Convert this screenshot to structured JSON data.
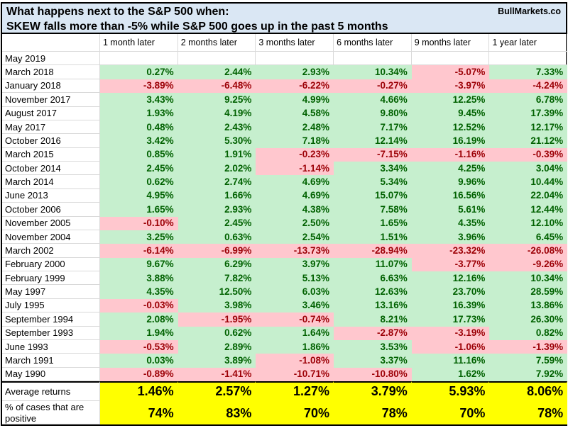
{
  "header": {
    "title_line1": "What happens next to the S&P 500 when:",
    "title_line2": "SKEW falls more than -5% while S&P 500 goes up in the past 5 months",
    "brand": "BullMarkets.co"
  },
  "chart_data": {
    "type": "table",
    "title": "What happens next to the S&P 500 when: SKEW falls more than -5% while S&P 500 goes up in the past 5 months",
    "columns": [
      "",
      "1 month later",
      "2 months later",
      "3 months later",
      "6 months later",
      "9 months later",
      "1 year later"
    ],
    "rows": [
      {
        "label": "May 2019",
        "values": [
          "",
          "",
          "",
          "",
          "",
          ""
        ]
      },
      {
        "label": "March 2018",
        "values": [
          "0.27%",
          "2.44%",
          "2.93%",
          "10.34%",
          "-5.07%",
          "7.33%"
        ]
      },
      {
        "label": "January 2018",
        "values": [
          "-3.89%",
          "-6.48%",
          "-6.22%",
          "-0.27%",
          "-3.97%",
          "-4.24%"
        ]
      },
      {
        "label": "November 2017",
        "values": [
          "3.43%",
          "9.25%",
          "4.99%",
          "4.66%",
          "12.25%",
          "6.78%"
        ]
      },
      {
        "label": "August 2017",
        "values": [
          "1.93%",
          "4.19%",
          "4.58%",
          "9.80%",
          "9.45%",
          "17.39%"
        ]
      },
      {
        "label": "May 2017",
        "values": [
          "0.48%",
          "2.43%",
          "2.48%",
          "7.17%",
          "12.52%",
          "12.17%"
        ]
      },
      {
        "label": "October 2016",
        "values": [
          "3.42%",
          "5.30%",
          "7.18%",
          "12.14%",
          "16.19%",
          "21.12%"
        ]
      },
      {
        "label": "March 2015",
        "values": [
          "0.85%",
          "1.91%",
          "-0.23%",
          "-7.15%",
          "-1.16%",
          "-0.39%"
        ]
      },
      {
        "label": "October 2014",
        "values": [
          "2.45%",
          "2.02%",
          "-1.14%",
          "3.34%",
          "4.25%",
          "3.04%"
        ]
      },
      {
        "label": "March 2014",
        "values": [
          "0.62%",
          "2.74%",
          "4.69%",
          "5.34%",
          "9.96%",
          "10.44%"
        ]
      },
      {
        "label": "June 2013",
        "values": [
          "4.95%",
          "1.66%",
          "4.69%",
          "15.07%",
          "16.56%",
          "22.04%"
        ]
      },
      {
        "label": "October 2006",
        "values": [
          "1.65%",
          "2.93%",
          "4.38%",
          "7.58%",
          "5.61%",
          "12.44%"
        ]
      },
      {
        "label": "November 2005",
        "values": [
          "-0.10%",
          "2.45%",
          "2.50%",
          "1.65%",
          "4.35%",
          "12.10%"
        ]
      },
      {
        "label": "November 2004",
        "values": [
          "3.25%",
          "0.63%",
          "2.54%",
          "1.51%",
          "3.96%",
          "6.45%"
        ]
      },
      {
        "label": "March 2002",
        "values": [
          "-6.14%",
          "-6.99%",
          "-13.73%",
          "-28.94%",
          "-23.32%",
          "-26.08%"
        ]
      },
      {
        "label": "February 2000",
        "values": [
          "9.67%",
          "6.29%",
          "3.97%",
          "11.07%",
          "-3.77%",
          "-9.26%"
        ]
      },
      {
        "label": "February 1999",
        "values": [
          "3.88%",
          "7.82%",
          "5.13%",
          "6.63%",
          "12.16%",
          "10.34%"
        ]
      },
      {
        "label": "May 1997",
        "values": [
          "4.35%",
          "12.50%",
          "6.03%",
          "12.63%",
          "23.70%",
          "28.59%"
        ]
      },
      {
        "label": "July 1995",
        "values": [
          "-0.03%",
          "3.98%",
          "3.46%",
          "13.16%",
          "16.39%",
          "13.86%"
        ]
      },
      {
        "label": "September 1994",
        "values": [
          "2.08%",
          "-1.95%",
          "-0.74%",
          "8.21%",
          "17.73%",
          "26.30%"
        ]
      },
      {
        "label": "September 1993",
        "values": [
          "1.94%",
          "0.62%",
          "1.64%",
          "-2.87%",
          "-3.19%",
          "0.82%"
        ]
      },
      {
        "label": "June 1993",
        "values": [
          "-0.53%",
          "2.89%",
          "1.86%",
          "3.53%",
          "-1.06%",
          "-1.39%"
        ]
      },
      {
        "label": "March 1991",
        "values": [
          "0.03%",
          "3.89%",
          "-1.08%",
          "3.37%",
          "11.16%",
          "7.59%"
        ]
      },
      {
        "label": "May 1990",
        "values": [
          "-0.89%",
          "-1.41%",
          "-10.71%",
          "-10.80%",
          "1.62%",
          "7.92%"
        ]
      }
    ],
    "summary": {
      "average_label": "Average returns",
      "average_values": [
        "1.46%",
        "2.57%",
        "1.27%",
        "3.79%",
        "5.93%",
        "8.06%"
      ],
      "positive_label": "% of cases that are positive",
      "positive_values": [
        "74%",
        "83%",
        "70%",
        "78%",
        "70%",
        "78%"
      ]
    },
    "colors": {
      "positive_bg": "#C6EFCE",
      "positive_text": "#006100",
      "negative_bg": "#FFC7CE",
      "negative_text": "#9C0006",
      "summary_bg": "#FFFF00",
      "title_bg": "#DAE7F4"
    }
  }
}
